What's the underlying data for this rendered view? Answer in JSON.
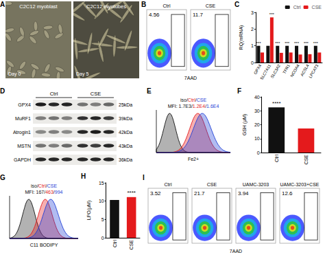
{
  "chart_data": [
    {
      "panel": "C",
      "type": "bar",
      "ylabel": "RQ(mRNA)",
      "categories": [
        "GPX4",
        "SLC7A11",
        "SLC3A2",
        "TFR1",
        "NCOA4",
        "ACSL4",
        "LPCAT3"
      ],
      "series": [
        {
          "name": "Ctrl",
          "color": "#111111",
          "values": [
            1,
            1,
            1,
            1,
            1,
            1,
            1
          ]
        },
        {
          "name": "CSE",
          "color": "#e41a1c",
          "values": [
            0.6,
            2.7,
            0.58,
            0.6,
            0.48,
            0.5,
            0.6
          ]
        }
      ],
      "ylim": [
        0,
        3
      ],
      "yticks": [
        0,
        1,
        2,
        3
      ],
      "legend": "top-right",
      "grid": false,
      "annotations": [
        "***",
        "***",
        "***",
        "***",
        "***",
        "***",
        "***"
      ]
    },
    {
      "panel": "F",
      "type": "bar",
      "ylabel": "GSH (μM)",
      "categories": [
        "Ctrl",
        "CSE"
      ],
      "values": [
        32.5,
        17.3
      ],
      "colors": [
        "#111111",
        "#e41a1c"
      ],
      "ylim": [
        0,
        40
      ],
      "yticks": [
        0,
        10,
        20,
        30,
        40
      ],
      "grid": false,
      "annotations": [
        "****"
      ]
    },
    {
      "panel": "H",
      "type": "bar",
      "ylabel": "LPO(μM)",
      "categories": [
        "Ctrl",
        "CSE"
      ],
      "values": [
        10.3,
        11.1
      ],
      "colors": [
        "#111111",
        "#e41a1c"
      ],
      "ylim": [
        0,
        15
      ],
      "yticks": [
        0,
        5,
        10,
        15
      ],
      "grid": false,
      "annotations": [
        "****"
      ]
    }
  ],
  "panels": {
    "A": {
      "label": "A",
      "images": [
        {
          "title": "C2C12 myoblast",
          "day": "Day 0"
        },
        {
          "title": "C2C12 myotubes",
          "day": "Day 5"
        }
      ]
    },
    "B": {
      "label": "B",
      "xlabel": "7AAD",
      "plots": [
        {
          "title": "Ctrl",
          "gate_percent": 4.56
        },
        {
          "title": "CSE",
          "gate_percent": 11.7
        }
      ]
    },
    "D": {
      "label": "D",
      "groups": [
        "Ctrl",
        "CSE"
      ],
      "bands": [
        {
          "name": "GPX4",
          "size": "25kDa"
        },
        {
          "name": "MuRF1",
          "size": "39kDa"
        },
        {
          "name": "Atrogin1",
          "size": "42kDa"
        },
        {
          "name": "MSTN",
          "size": "43kDa"
        },
        {
          "name": "GAPDH",
          "size": "36kDa"
        }
      ]
    },
    "E": {
      "label": "E",
      "names": [
        "iso",
        "Ctrl",
        "CSE"
      ],
      "colors": [
        "#111111",
        "#e41a1c",
        "#1f3fd6"
      ],
      "separator": "/",
      "mfi_label": "MFI:",
      "mfi": [
        {
          "value": 1700,
          "label": "1.7E3"
        },
        {
          "value": 12000,
          "label": "1.2E4"
        },
        {
          "value": 16000,
          "label": "1.6E4"
        }
      ],
      "xlabel": "Fe2+"
    },
    "G": {
      "label": "G",
      "names": [
        "iso",
        "Ctrl",
        "CSE"
      ],
      "colors": [
        "#111111",
        "#e41a1c",
        "#1f3fd6"
      ],
      "separator": "/",
      "mfi_label": "MFI:",
      "mfi": [
        167,
        463,
        994
      ],
      "xlabel": "C11 BODIPY"
    },
    "I": {
      "label": "I",
      "xlabel": "7AAD",
      "plots": [
        {
          "title": "Ctrl",
          "gate_percent": 3.52
        },
        {
          "title": "CSE",
          "gate_percent": 21.7
        },
        {
          "title": "UAMC-3203",
          "gate_percent": 3.94
        },
        {
          "title": "UAMC-3203+CSE",
          "gate_percent": 12.6
        }
      ]
    }
  }
}
